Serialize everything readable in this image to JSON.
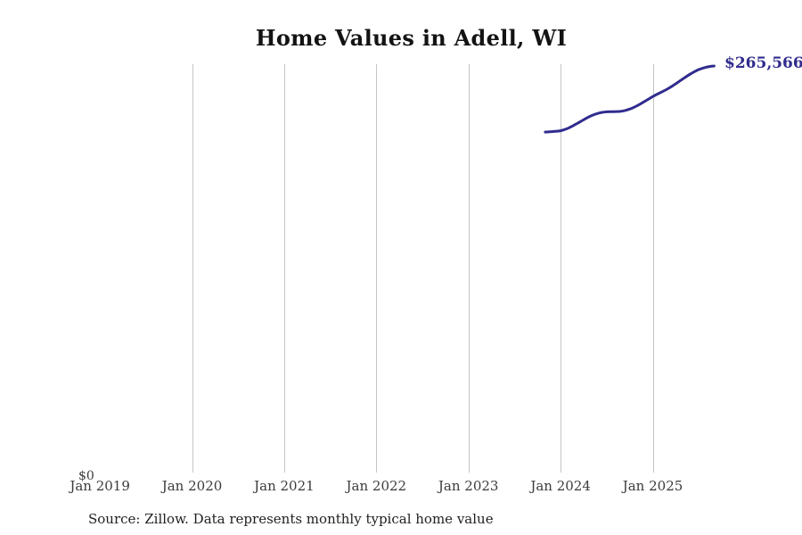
{
  "title": "Home Values in Adell, WI",
  "source_note": "Source: Zillow. Data represents monthly typical home value",
  "colors": {
    "line": "#302c8e",
    "end_label": "#302c8e",
    "grid": "#c4c4c4",
    "axis_text": "#3b3b3b",
    "title_text": "#131313",
    "background": "#ffffff"
  },
  "chart_data": {
    "type": "line",
    "title": "Home Values in Adell, WI",
    "x_tick_labels": [
      "Jan 2019",
      "Jan 2020",
      "Jan 2021",
      "Jan 2022",
      "Jan 2023",
      "Jan 2024",
      "Jan 2025"
    ],
    "y_tick_labels": [
      "$0"
    ],
    "ylim": [
      0,
      265566
    ],
    "grid": "vertical-only",
    "legend": "none",
    "end_value_label": "$265,566",
    "series": [
      {
        "name": "Monthly typical home value",
        "months": [
          "Nov 2023",
          "Dec 2023",
          "Jan 2024",
          "Feb 2024",
          "Mar 2024",
          "Apr 2024",
          "May 2024",
          "Jun 2024",
          "Jul 2024",
          "Aug 2024",
          "Sep 2024",
          "Oct 2024",
          "Nov 2024",
          "Dec 2024",
          "Jan 2025",
          "Feb 2025",
          "Mar 2025",
          "Apr 2025",
          "May 2025",
          "Jun 2025",
          "Jul 2025",
          "Aug 2025",
          "Sep 2025"
        ],
        "values": [
          222200,
          222600,
          223100,
          224800,
          227400,
          230300,
          232900,
          234700,
          235500,
          235600,
          235900,
          237300,
          239600,
          242500,
          245500,
          248100,
          250700,
          253900,
          257400,
          260600,
          263200,
          264800,
          265566
        ]
      }
    ]
  }
}
